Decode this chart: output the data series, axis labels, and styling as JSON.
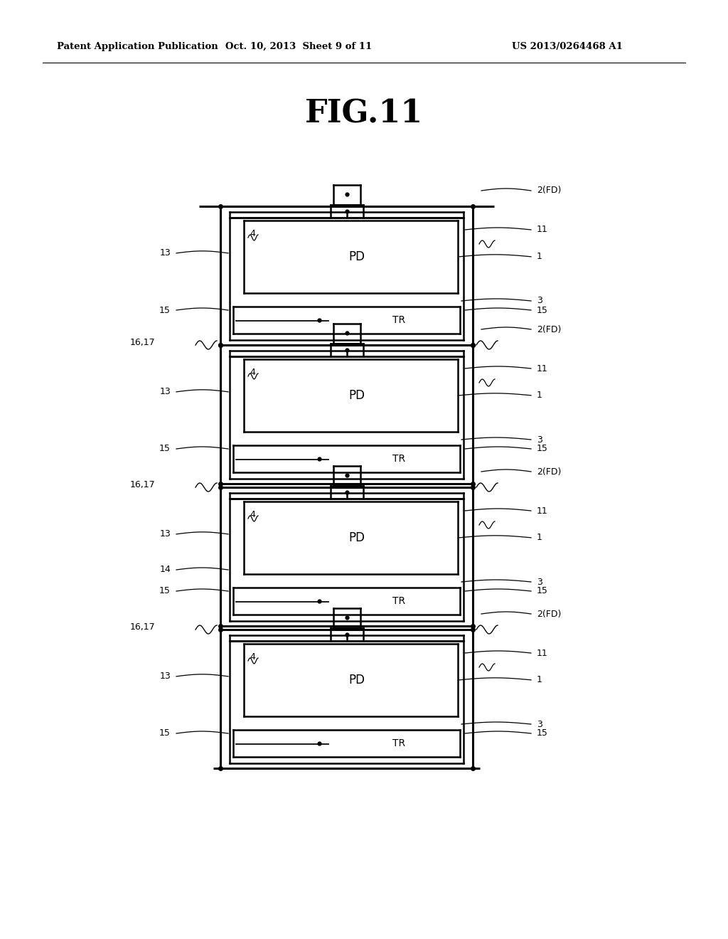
{
  "title": "FIG.11",
  "header_left": "Patent Application Publication",
  "header_mid": "Oct. 10, 2013  Sheet 9 of 11",
  "header_right": "US 2013/0264468 A1",
  "bg_color": "#ffffff",
  "line_color": "#000000"
}
